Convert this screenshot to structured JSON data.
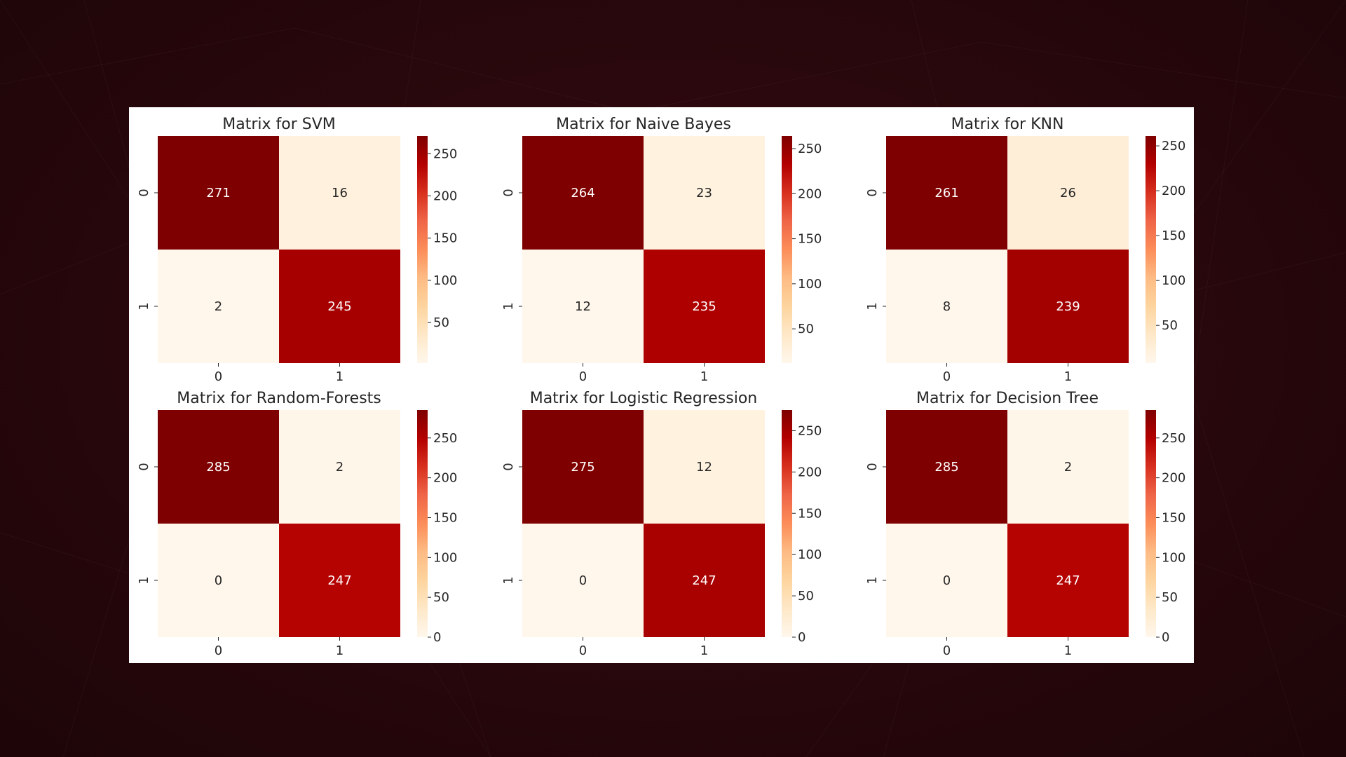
{
  "colors": {
    "background_dark": "#2a080d",
    "figure_background": "#ffffff",
    "colormap": [
      "#fff7ec",
      "#fee8c8",
      "#fdd49e",
      "#fdbb84",
      "#fc8d59",
      "#ef6548",
      "#d7301f",
      "#b30000",
      "#7f0000"
    ],
    "annotation_text": "#ffffff",
    "axis_text": "#262626"
  },
  "chart_data": [
    {
      "type": "heatmap",
      "title": "Matrix for SVM",
      "x_tick_labels": [
        "0",
        "1"
      ],
      "y_tick_labels": [
        "0",
        "1"
      ],
      "matrix": [
        [
          271,
          16
        ],
        [
          2,
          245
        ]
      ],
      "colorbar": {
        "range": [
          2,
          271
        ],
        "ticks": [
          50,
          100,
          150,
          200,
          250
        ]
      }
    },
    {
      "type": "heatmap",
      "title": "Matrix for Naive Bayes",
      "x_tick_labels": [
        "0",
        "1"
      ],
      "y_tick_labels": [
        "0",
        "1"
      ],
      "matrix": [
        [
          264,
          23
        ],
        [
          12,
          235
        ]
      ],
      "colorbar": {
        "range": [
          12,
          264
        ],
        "ticks": [
          50,
          100,
          150,
          200,
          250
        ]
      }
    },
    {
      "type": "heatmap",
      "title": "Matrix for KNN",
      "x_tick_labels": [
        "0",
        "1"
      ],
      "y_tick_labels": [
        "0",
        "1"
      ],
      "matrix": [
        [
          261,
          26
        ],
        [
          8,
          239
        ]
      ],
      "colorbar": {
        "range": [
          8,
          261
        ],
        "ticks": [
          50,
          100,
          150,
          200,
          250
        ]
      }
    },
    {
      "type": "heatmap",
      "title": "Matrix for Random-Forests",
      "x_tick_labels": [
        "0",
        "1"
      ],
      "y_tick_labels": [
        "0",
        "1"
      ],
      "matrix": [
        [
          285,
          2
        ],
        [
          0,
          247
        ]
      ],
      "colorbar": {
        "range": [
          0,
          285
        ],
        "ticks": [
          0,
          50,
          100,
          150,
          200,
          250
        ]
      }
    },
    {
      "type": "heatmap",
      "title": "Matrix for Logistic Regression",
      "x_tick_labels": [
        "0",
        "1"
      ],
      "y_tick_labels": [
        "0",
        "1"
      ],
      "matrix": [
        [
          275,
          12
        ],
        [
          0,
          247
        ]
      ],
      "colorbar": {
        "range": [
          0,
          275
        ],
        "ticks": [
          0,
          50,
          100,
          150,
          200,
          250
        ]
      }
    },
    {
      "type": "heatmap",
      "title": "Matrix for Decision Tree",
      "x_tick_labels": [
        "0",
        "1"
      ],
      "y_tick_labels": [
        "0",
        "1"
      ],
      "matrix": [
        [
          285,
          2
        ],
        [
          0,
          247
        ]
      ],
      "colorbar": {
        "range": [
          0,
          285
        ],
        "ticks": [
          0,
          50,
          100,
          150,
          200,
          250
        ]
      }
    }
  ]
}
